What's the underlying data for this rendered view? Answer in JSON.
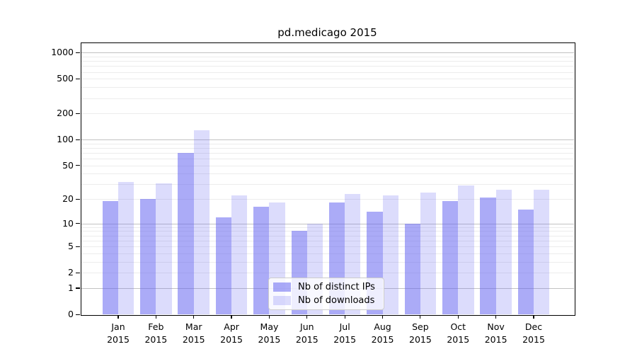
{
  "chart_data": {
    "type": "bar",
    "title": "pd.medicago 2015",
    "x_months": [
      "Jan",
      "Feb",
      "Mar",
      "Apr",
      "May",
      "Jun",
      "Jul",
      "Aug",
      "Sep",
      "Oct",
      "Nov",
      "Dec"
    ],
    "x_year": "2015",
    "categories": [
      "Jan 2015",
      "Feb 2015",
      "Mar 2015",
      "Apr 2015",
      "May 2015",
      "Jun 2015",
      "Jul 2015",
      "Aug 2015",
      "Sep 2015",
      "Oct 2015",
      "Nov 2015",
      "Dec 2015"
    ],
    "series": [
      {
        "name": "Nb of distinct IPs",
        "color": "#6666f0",
        "alpha": 0.55,
        "rendered_color": "#aaaaf2",
        "values": [
          19,
          20,
          70,
          12,
          16,
          8,
          18,
          14,
          10,
          19,
          21,
          15
        ]
      },
      {
        "name": "Nb of downloads",
        "color": "#6666f0",
        "alpha": 0.23,
        "rendered_color": "#dcdcf8",
        "values": [
          32,
          31,
          128,
          22,
          18,
          10,
          23,
          22,
          24,
          29,
          26,
          26
        ]
      }
    ],
    "y_scale": "log10(1+y)",
    "y_tick_values": [
      0,
      1,
      2,
      5,
      10,
      20,
      50,
      100,
      200,
      500,
      1000
    ],
    "y_tick_labels": [
      "0",
      "1",
      "2",
      "5",
      "10",
      "20",
      "50",
      "100",
      "200",
      "500",
      "1000"
    ],
    "y_major_gridlines": [
      1,
      10,
      100,
      1000
    ],
    "y_minor_gridlines": [
      2,
      3,
      4,
      5,
      6,
      7,
      8,
      9,
      20,
      30,
      40,
      50,
      60,
      70,
      80,
      90,
      200,
      300,
      400,
      500,
      600,
      700,
      800,
      900
    ],
    "ylim": [
      0,
      1300
    ],
    "grid": true,
    "legend_position": "lower center",
    "colors": {
      "axis": "#000000",
      "major_grid": "#c2c2c2",
      "minor_grid": "#ececec",
      "background": "#ffffff"
    }
  }
}
